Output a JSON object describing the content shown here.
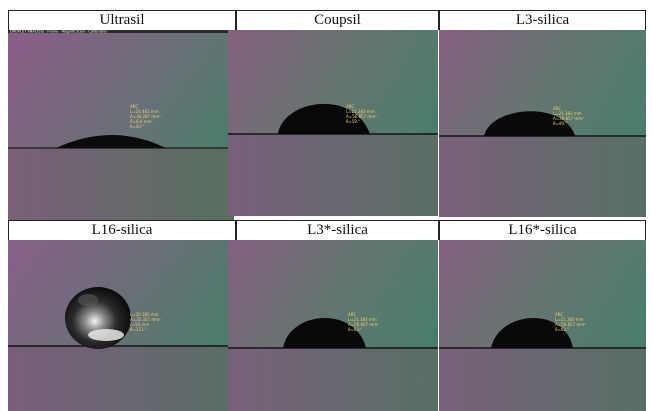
{
  "panels": [
    {
      "label": "Ultrasil"
    },
    {
      "label": "Coupsil"
    },
    {
      "label": "L3-silica"
    },
    {
      "label": "L16-silica"
    },
    {
      "label": "L3*-silica"
    },
    {
      "label": "L16*-silica"
    }
  ],
  "colors": {
    "background_top_left": "#8a5f86",
    "background_top_right": "#4c7a6a",
    "substrate": "#6f5f6f",
    "droplet": "#0a0a0a",
    "annotation": "#f0d070"
  }
}
